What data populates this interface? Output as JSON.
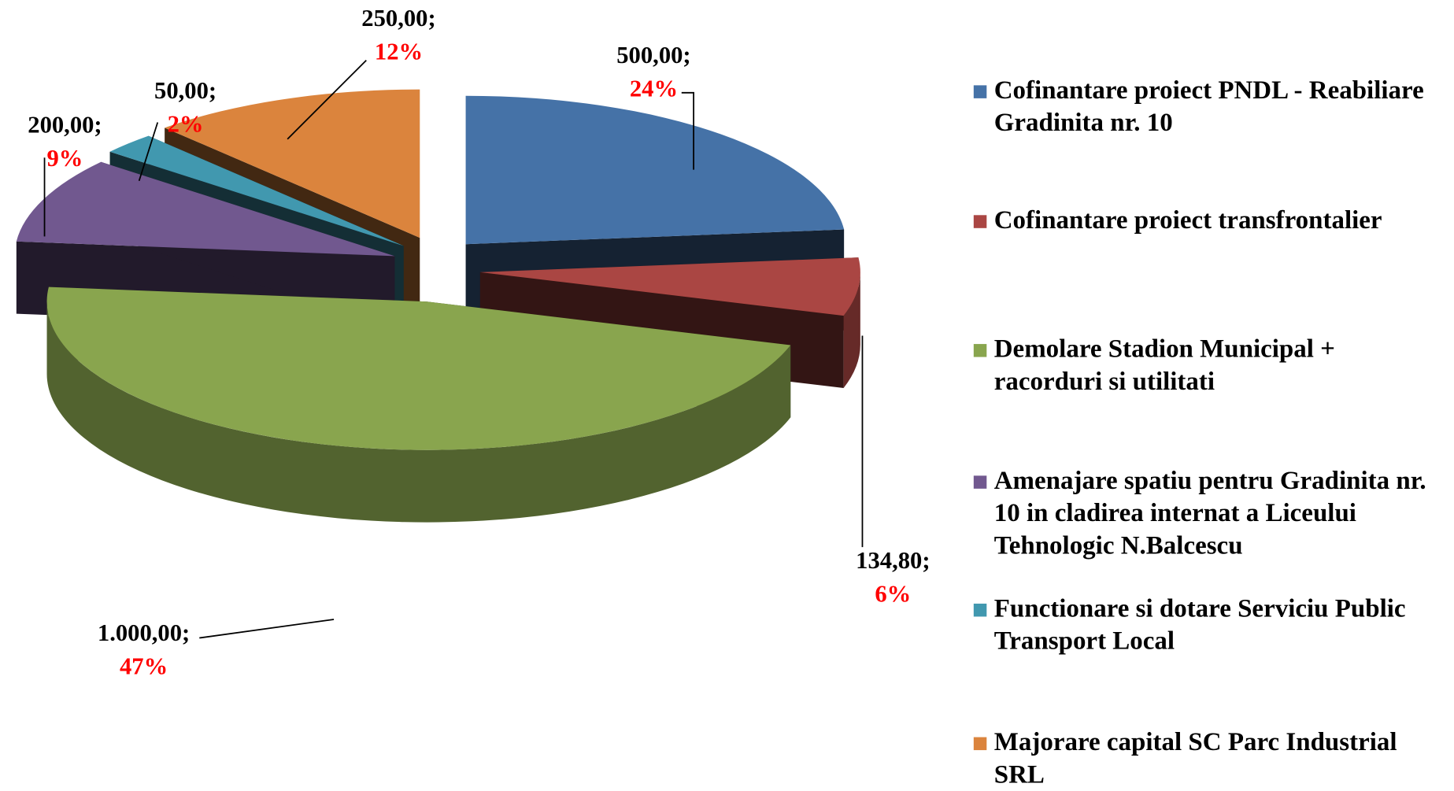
{
  "chart_data": {
    "type": "pie",
    "categories": [
      "Cofinantare proiect PNDL - Reabiliare Gradinita nr. 10",
      "Cofinantare proiect transfrontalier",
      "Demolare Stadion Municipal + racorduri si utilitati",
      "Amenajare spatiu pentru Gradinita nr. 10 in cladirea internat a Liceului Tehnologic N.Balcescu",
      "Functionare si dotare Serviciu Public Transport Local",
      "Majorare capital SC Parc Industrial SRL"
    ],
    "values": [
      500,
      134.8,
      1000,
      200,
      50,
      250
    ],
    "value_labels": [
      "500,00;",
      "134,80;",
      "1.000,00;",
      "200,00;",
      "50,00;",
      "250,00;"
    ],
    "percent_labels": [
      "24%",
      "6%",
      "47%",
      "9%",
      "2%",
      "12%"
    ],
    "colors": [
      "#4572a7",
      "#aa4643",
      "#89a54e",
      "#71588f",
      "#4198af",
      "#db843d"
    ],
    "legend": "right"
  }
}
